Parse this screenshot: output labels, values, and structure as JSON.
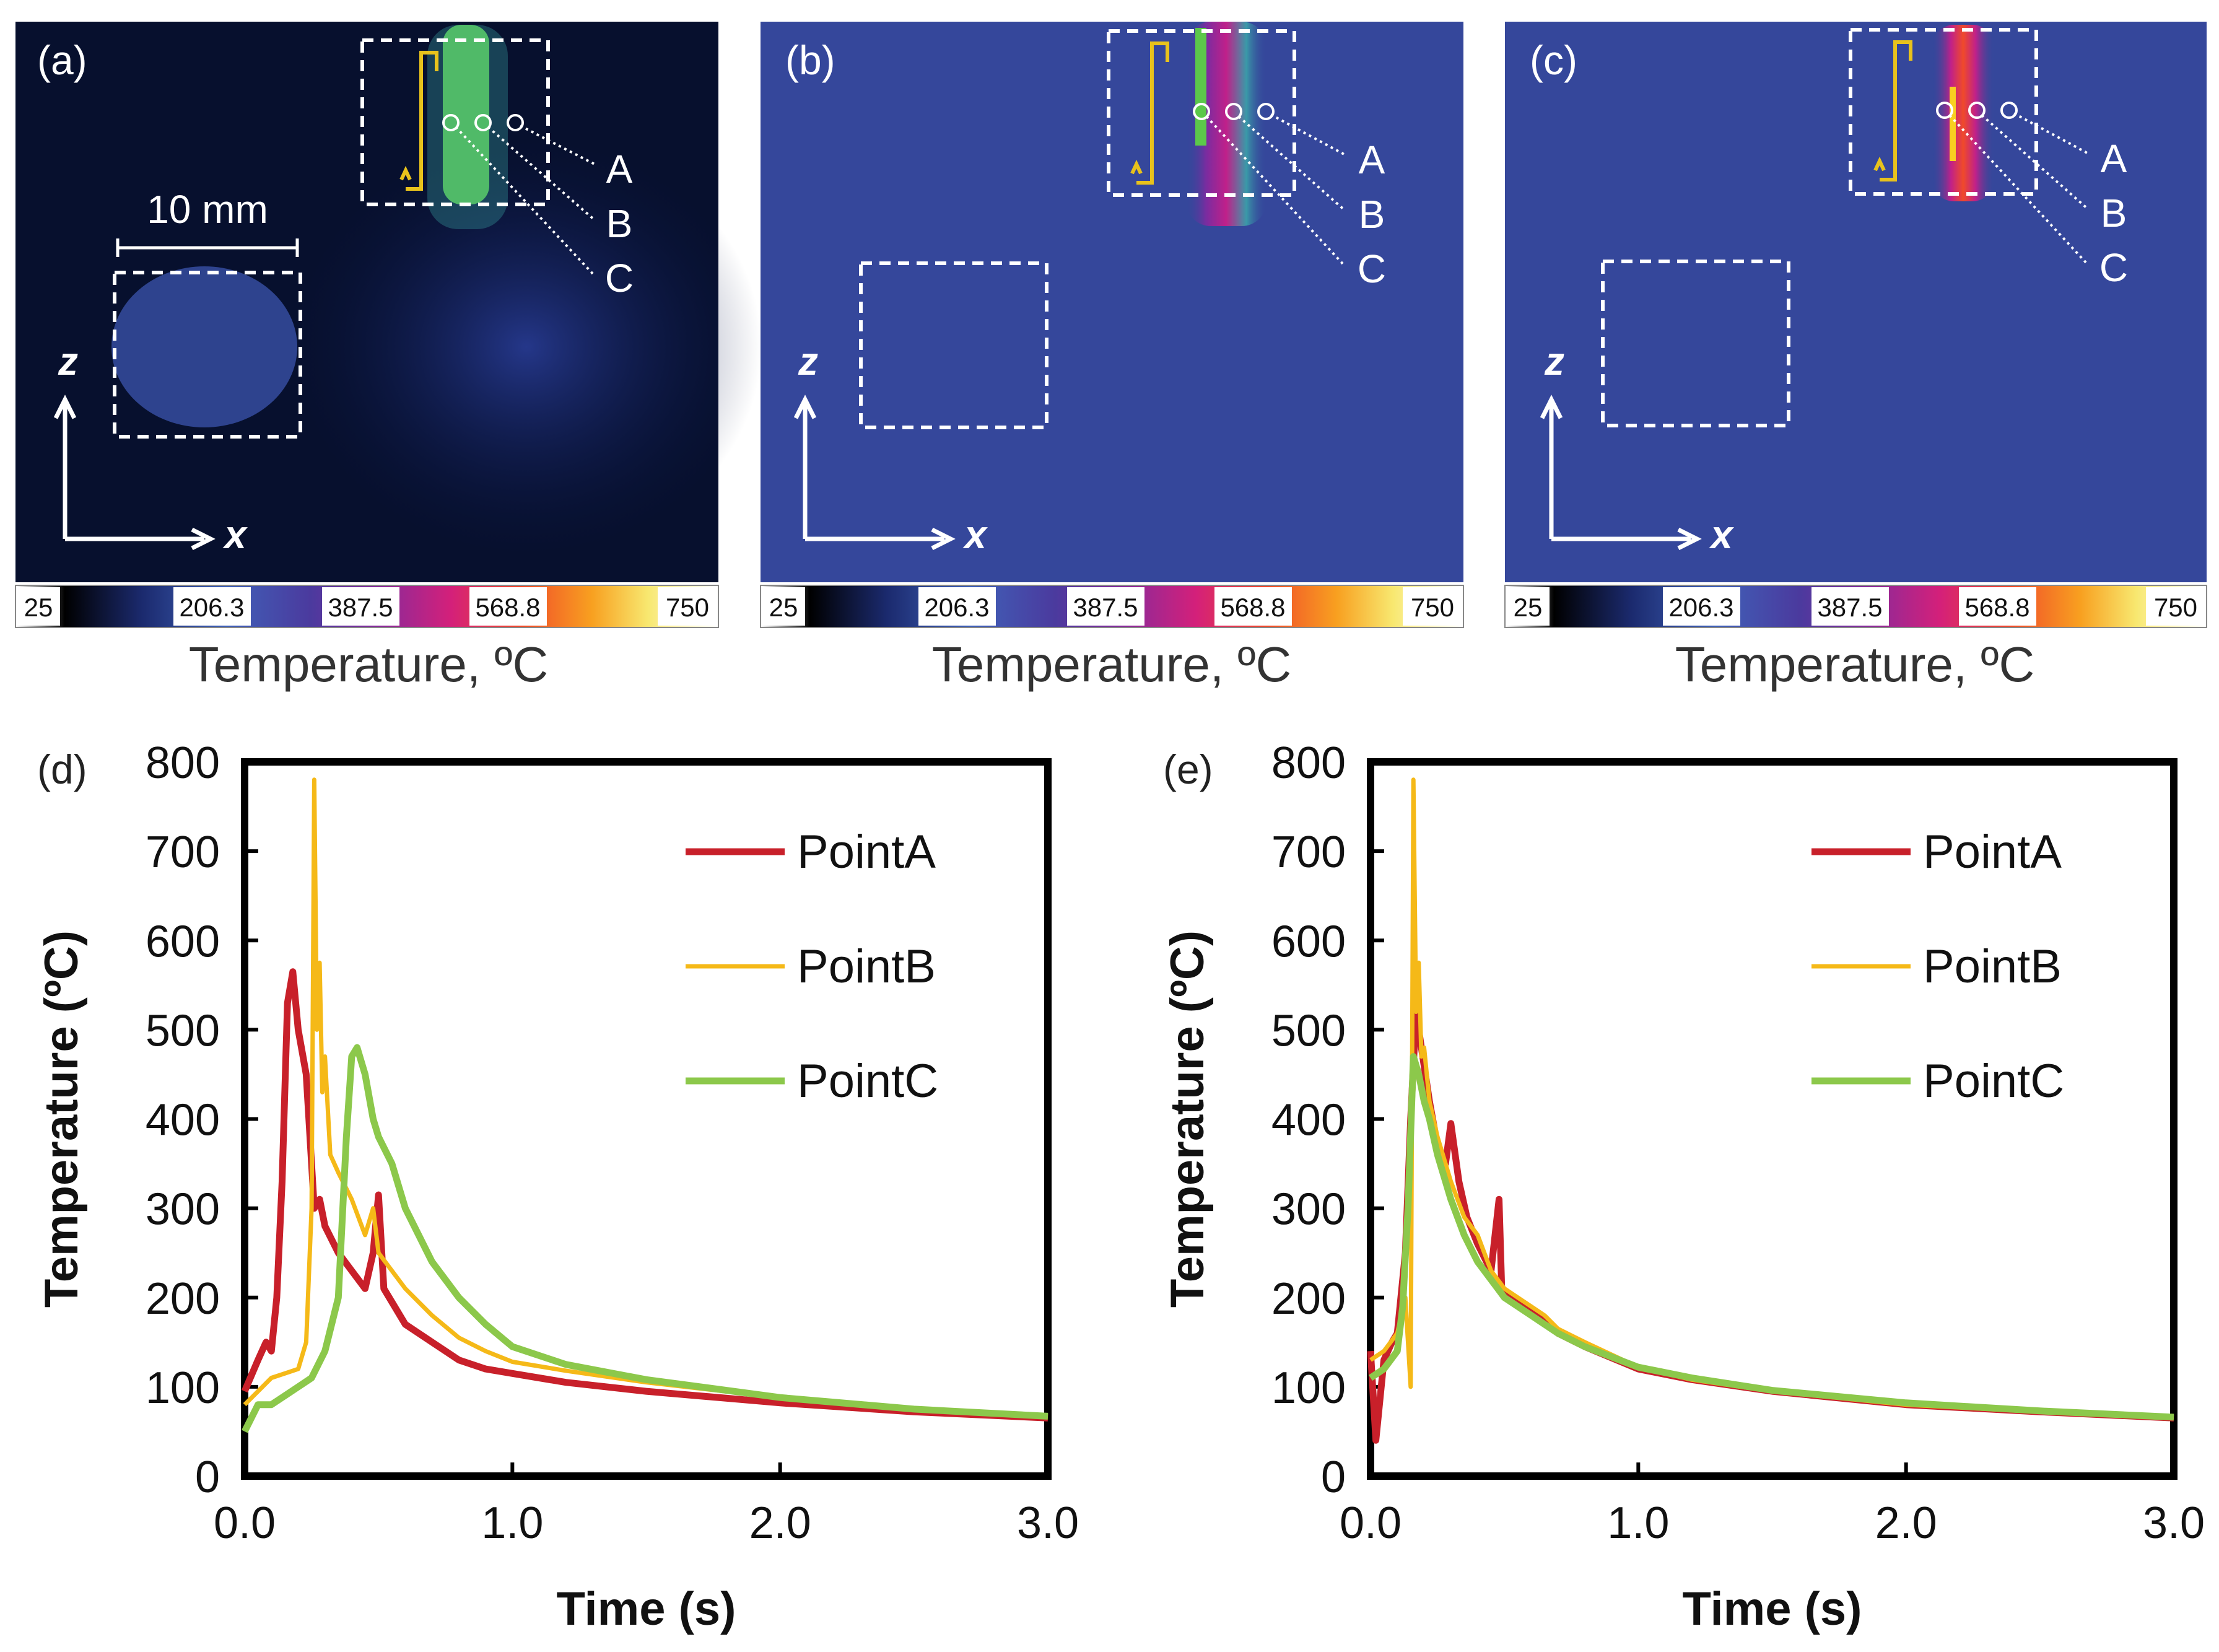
{
  "panels": {
    "a": {
      "label": "(a)"
    },
    "b": {
      "label": "(b)"
    },
    "c": {
      "label": "(c)"
    },
    "d": {
      "label": "(d)"
    },
    "e": {
      "label": "(e)"
    }
  },
  "thermal": {
    "scale_bar_text": "10 mm",
    "axis_z": "z",
    "axis_x": "x",
    "points": [
      "A",
      "B",
      "C"
    ],
    "colorbar_ticks": [
      "25",
      "206.3",
      "387.5",
      "568.8",
      "750"
    ],
    "colorbar_title": "Temperature, ºC",
    "colors": {
      "bg_a": "#07102e",
      "bg_bc": "#35479b",
      "scan_path": "#e8c21c",
      "green_melt": "#5cc84a"
    }
  },
  "colors": {
    "PointA": "#c8202a",
    "PointB": "#f5b918",
    "PointC": "#8cc84b"
  },
  "chart_data": [
    {
      "type": "line",
      "panel": "(d)",
      "xlabel": "Time (s)",
      "ylabel": "Temperature (ºC)",
      "xlim": [
        0,
        3.0
      ],
      "ylim": [
        0,
        800
      ],
      "xticks": [
        "0.0",
        "1.0",
        "2.0",
        "3.0"
      ],
      "yticks": [
        "0",
        "100",
        "200",
        "300",
        "400",
        "500",
        "600",
        "700",
        "800"
      ],
      "legend_position": "top-right",
      "series": [
        {
          "name": "PointA",
          "color": "#c8202a",
          "x": [
            0.0,
            0.05,
            0.08,
            0.1,
            0.12,
            0.14,
            0.16,
            0.18,
            0.2,
            0.23,
            0.26,
            0.28,
            0.3,
            0.35,
            0.4,
            0.45,
            0.48,
            0.5,
            0.52,
            0.55,
            0.6,
            0.7,
            0.8,
            0.9,
            1.0,
            1.2,
            1.5,
            2.0,
            2.5,
            3.0
          ],
          "y": [
            95,
            130,
            150,
            140,
            200,
            330,
            530,
            565,
            500,
            450,
            300,
            310,
            280,
            250,
            230,
            210,
            250,
            315,
            210,
            195,
            170,
            150,
            130,
            120,
            115,
            105,
            95,
            82,
            72,
            65
          ]
        },
        {
          "name": "PointB",
          "color": "#f5b918",
          "x": [
            0.0,
            0.05,
            0.1,
            0.15,
            0.2,
            0.23,
            0.25,
            0.26,
            0.27,
            0.28,
            0.29,
            0.3,
            0.32,
            0.35,
            0.4,
            0.45,
            0.48,
            0.5,
            0.55,
            0.6,
            0.7,
            0.8,
            0.9,
            1.0,
            1.2,
            1.5,
            2.0,
            2.5,
            3.0
          ],
          "y": [
            80,
            95,
            110,
            115,
            120,
            150,
            300,
            780,
            500,
            575,
            430,
            470,
            360,
            340,
            310,
            270,
            300,
            250,
            230,
            210,
            180,
            155,
            140,
            128,
            118,
            105,
            88,
            75,
            67
          ]
        },
        {
          "name": "PointC",
          "color": "#8cc84b",
          "x": [
            0.0,
            0.05,
            0.1,
            0.15,
            0.2,
            0.25,
            0.3,
            0.35,
            0.38,
            0.4,
            0.42,
            0.45,
            0.48,
            0.5,
            0.55,
            0.6,
            0.7,
            0.8,
            0.9,
            1.0,
            1.2,
            1.5,
            2.0,
            2.5,
            3.0
          ],
          "y": [
            50,
            80,
            80,
            90,
            100,
            110,
            140,
            200,
            380,
            470,
            480,
            450,
            400,
            380,
            350,
            300,
            240,
            200,
            170,
            145,
            125,
            108,
            88,
            75,
            67
          ]
        }
      ]
    },
    {
      "type": "line",
      "panel": "(e)",
      "xlabel": "Time (s)",
      "ylabel": "Temperature (ºC)",
      "xlim": [
        0,
        3.0
      ],
      "ylim": [
        0,
        800
      ],
      "xticks": [
        "0.0",
        "1.0",
        "2.0",
        "3.0"
      ],
      "yticks": [
        "0",
        "100",
        "200",
        "300",
        "400",
        "500",
        "600",
        "700",
        "800"
      ],
      "legend_position": "top-right",
      "series": [
        {
          "name": "PointA",
          "color": "#c8202a",
          "x": [
            0.0,
            0.02,
            0.05,
            0.08,
            0.1,
            0.13,
            0.15,
            0.17,
            0.19,
            0.22,
            0.25,
            0.28,
            0.3,
            0.33,
            0.36,
            0.4,
            0.45,
            0.48,
            0.49,
            0.5,
            0.55,
            0.6,
            0.7,
            0.8,
            1.0,
            1.2,
            1.5,
            2.0,
            2.5,
            3.0
          ],
          "y": [
            140,
            40,
            130,
            150,
            160,
            250,
            400,
            520,
            480,
            420,
            370,
            350,
            395,
            330,
            290,
            260,
            230,
            310,
            210,
            205,
            195,
            185,
            160,
            145,
            120,
            108,
            95,
            80,
            72,
            65
          ]
        },
        {
          "name": "PointB",
          "color": "#f5b918",
          "x": [
            0.0,
            0.05,
            0.1,
            0.13,
            0.15,
            0.16,
            0.17,
            0.18,
            0.19,
            0.2,
            0.22,
            0.25,
            0.3,
            0.35,
            0.4,
            0.45,
            0.5,
            0.55,
            0.6,
            0.65,
            0.7,
            0.8,
            1.0,
            1.2,
            1.5,
            2.0,
            2.5,
            3.0
          ],
          "y": [
            130,
            140,
            160,
            200,
            100,
            780,
            520,
            575,
            470,
            480,
            420,
            380,
            330,
            290,
            270,
            230,
            210,
            200,
            190,
            180,
            165,
            150,
            122,
            108,
            95,
            80,
            72,
            66
          ]
        },
        {
          "name": "PointC",
          "color": "#8cc84b",
          "x": [
            0.0,
            0.05,
            0.1,
            0.12,
            0.14,
            0.16,
            0.18,
            0.2,
            0.22,
            0.25,
            0.3,
            0.35,
            0.4,
            0.45,
            0.5,
            0.6,
            0.7,
            0.8,
            1.0,
            1.2,
            1.5,
            2.0,
            2.5,
            3.0
          ],
          "y": [
            110,
            120,
            140,
            190,
            300,
            470,
            450,
            420,
            400,
            360,
            310,
            270,
            240,
            220,
            200,
            180,
            160,
            145,
            122,
            110,
            96,
            82,
            73,
            66
          ]
        }
      ]
    }
  ]
}
